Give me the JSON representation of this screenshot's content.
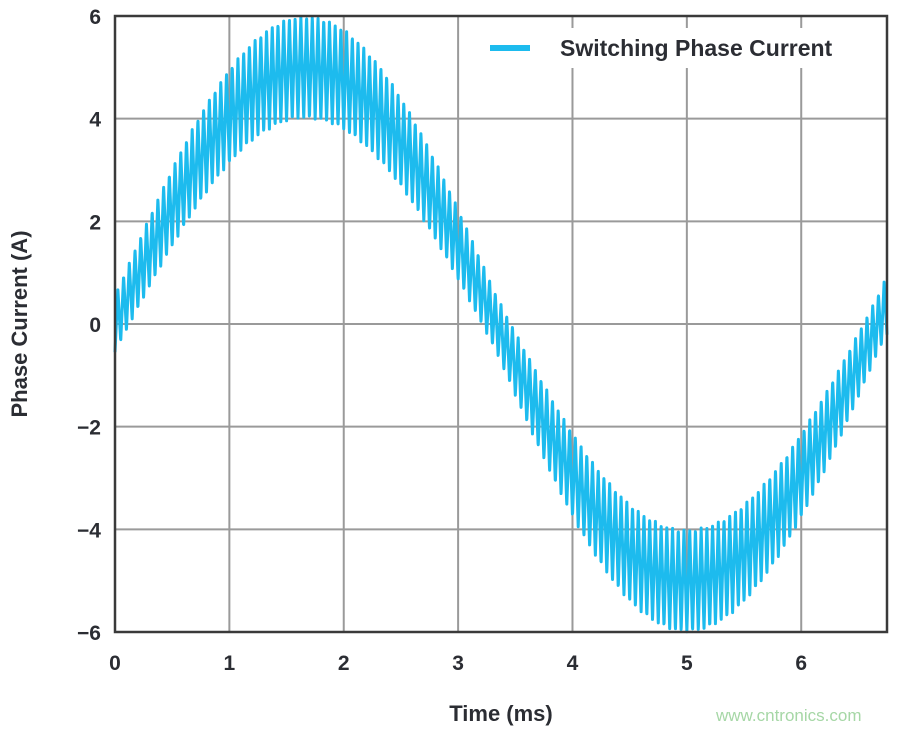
{
  "chart_data": {
    "type": "line",
    "title": "",
    "xlabel": "Time (ms)",
    "ylabel": "Phase Current (A)",
    "xlim": [
      0,
      6.75
    ],
    "ylim": [
      -6,
      6
    ],
    "xticks": [
      0,
      1,
      2,
      3,
      4,
      5,
      6
    ],
    "yticks": [
      6,
      4,
      2,
      0,
      -2,
      -4,
      -6
    ],
    "ytick_labels": [
      "6",
      "4",
      "2",
      "0",
      "−2",
      "−4",
      "−6"
    ],
    "grid": true,
    "legend_position": "top-right",
    "series": [
      {
        "name": "Switching Phase Current",
        "color": "#1dbbee",
        "model": {
          "fundamental_amplitude_A": 5,
          "fundamental_period_ms": 6.67,
          "ripple_amplitude_A": 1.0,
          "ripple_frequency_kHz": 20
        },
        "envelope_samples": {
          "x": [
            0,
            0.5,
            1,
            1.5,
            1.67,
            2,
            2.5,
            3,
            3.33,
            3.5,
            4,
            4.5,
            5,
            5.5,
            6,
            6.5,
            6.75
          ],
          "y_mean": [
            0,
            2.2,
            4.0,
            4.9,
            5.0,
            4.3,
            2.6,
            0.7,
            0,
            -0.6,
            -2.9,
            -4.4,
            -5.0,
            -4.6,
            -2.9,
            -0.7,
            0.4
          ]
        }
      }
    ]
  },
  "watermark": "www.cntronics.com"
}
